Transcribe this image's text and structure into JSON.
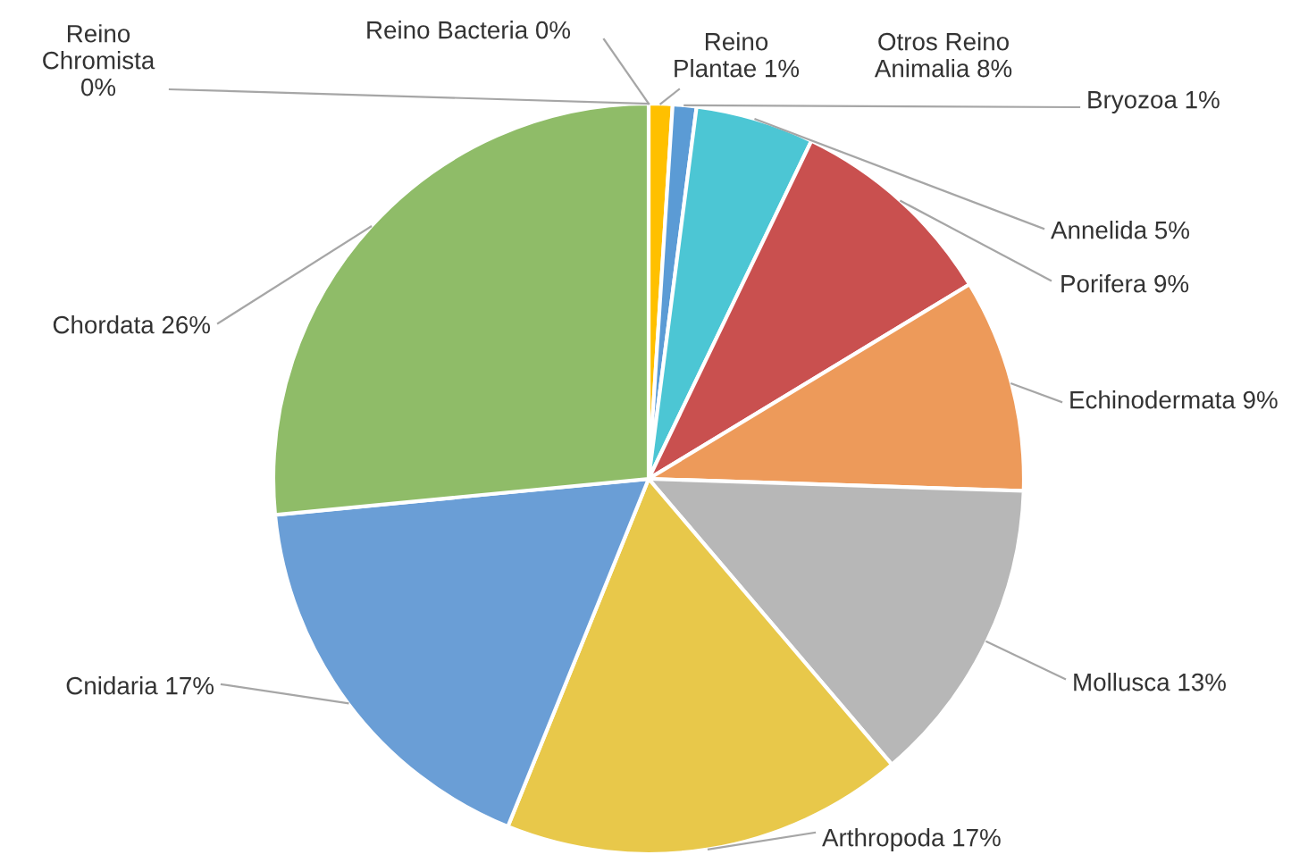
{
  "chart_data": {
    "type": "pie",
    "categories": [
      "Reino Chromista",
      "Reino Bacteria",
      "Reino Plantae",
      "Bryozoa",
      "Annelida",
      "Porifera",
      "Echinodermata",
      "Mollusca",
      "Arthropoda",
      "Cnidaria",
      "Chordata"
    ],
    "values": [
      0,
      0,
      1,
      1,
      5,
      9,
      9,
      13,
      17,
      17,
      26
    ],
    "value_labels": [
      "0%",
      "0%",
      "1%",
      "1%",
      "5%",
      "9%",
      "9%",
      "13%",
      "17%",
      "17%",
      "26%"
    ],
    "colors": [
      "#ed7d31",
      "#a5a5a5",
      "#ffc000",
      "#5b9bd5",
      "#4cc6d4",
      "#c9504f",
      "#ed9a5a",
      "#b7b7b7",
      "#e8c84a",
      "#6a9ed6",
      "#8fbc68"
    ],
    "annotations": [
      "Otros Reino Animalia 8%"
    ]
  }
}
